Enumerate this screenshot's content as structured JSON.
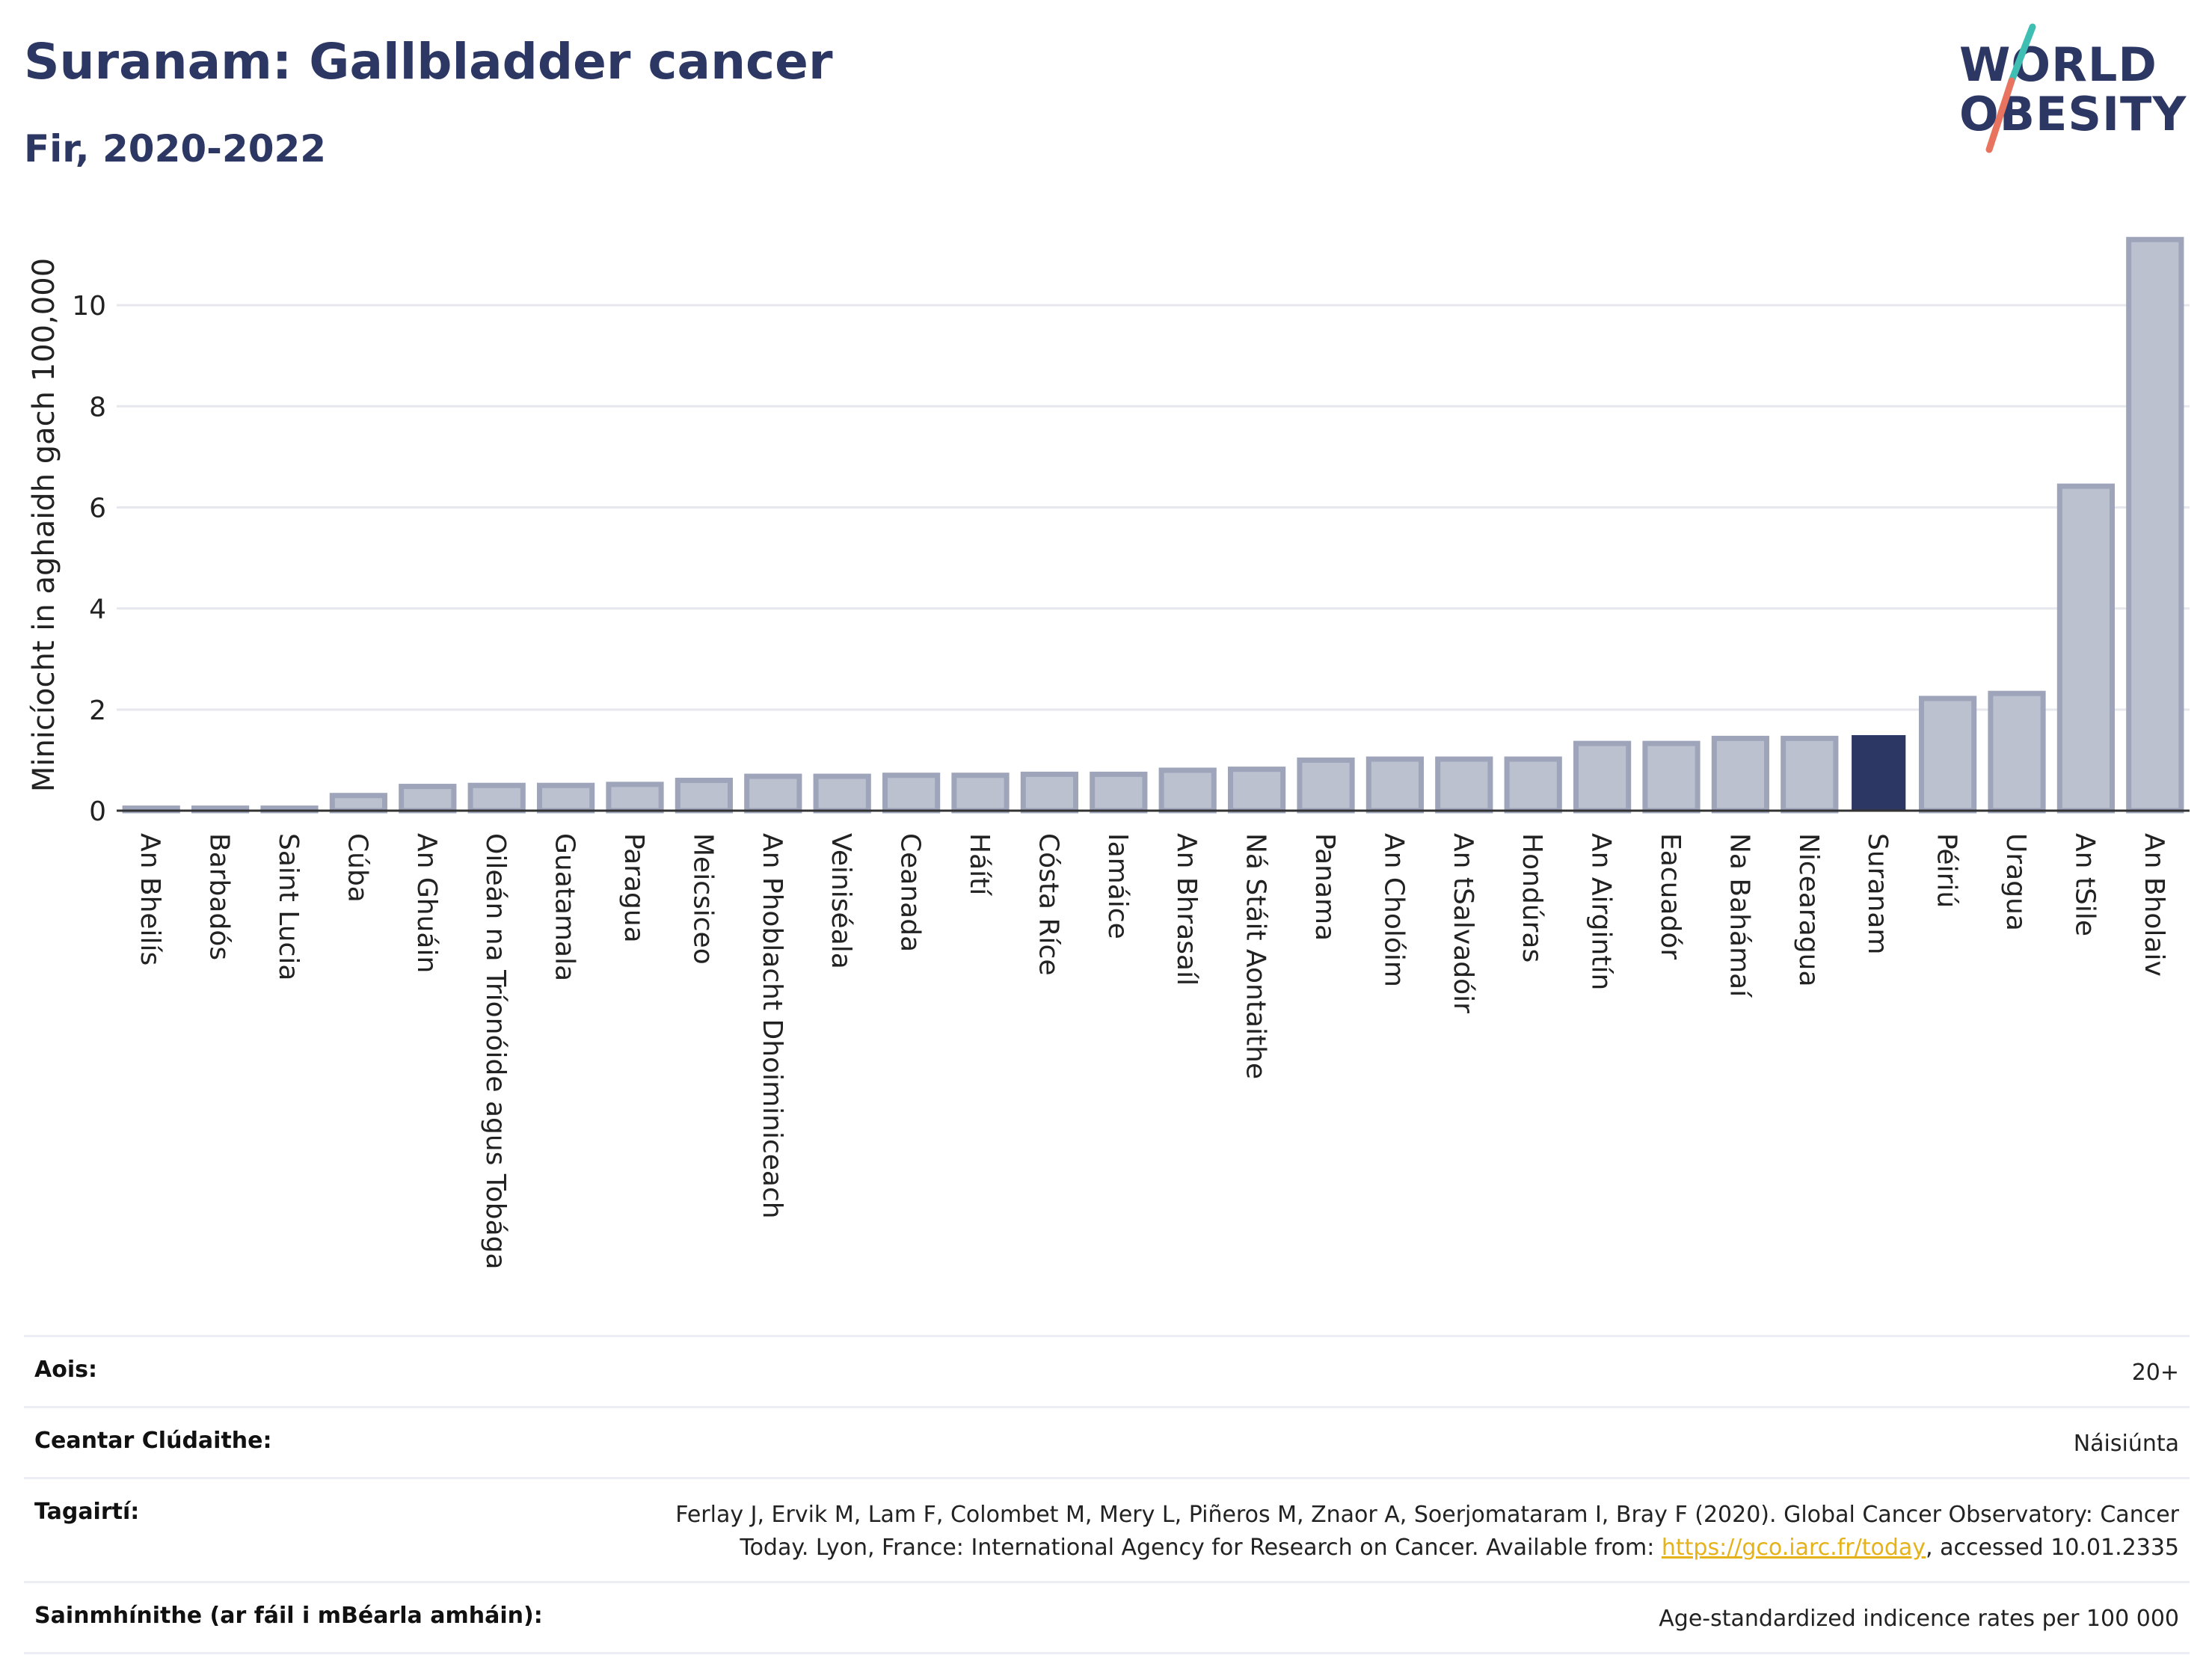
{
  "header": {
    "title": "Suranam: Gallbladder cancer",
    "subtitle": "Fir, 2020-2022"
  },
  "logo": {
    "line1": "WORLD",
    "line2": "OBESITY"
  },
  "colors": {
    "title": "#2c3764",
    "highlight_bar": "#2c3764",
    "other_bar_fill": "#bcc1d0",
    "other_bar_stroke": "#9ea4ba",
    "grid": "#e6e8ee",
    "axis": "#333333",
    "logo_teal": "#3fbfb4",
    "logo_coral": "#e8735f"
  },
  "chart_data": {
    "type": "bar",
    "title": "Suranam: Gallbladder cancer",
    "subtitle": "Fir, 2020-2022",
    "ylabel": "Minicíocht in aghaidh gach 100,000",
    "xlabel": "",
    "ylim": [
      0,
      11.6
    ],
    "yticks": [
      0,
      2,
      4,
      6,
      8,
      10
    ],
    "grid": true,
    "highlight": "Suranam",
    "categories": [
      "An Bheilís",
      "Barbadós",
      "Saint Lucia",
      "Cúba",
      "An Ghuáin",
      "Oileán na Tríonóide agus Tobága",
      "Guatamala",
      "Paragua",
      "Meicsiceo",
      "An Phoblacht Dhoiminiceach",
      "Veiniséala",
      "Ceanada",
      "Háítí",
      "Cósta Ríce",
      "Iamáice",
      "An Bhrasaíl",
      "Ná Stáit Aontaithe",
      "Panama",
      "An Cholóim",
      "An tSalvadóir",
      "Hondúras",
      "An Airgintín",
      "Eacuadór",
      "Na Bahámaí",
      "Nicearagua",
      "Suranam",
      "Péiriú",
      "Uragua",
      "An tSile",
      "An Bholaiv"
    ],
    "values": [
      0.05,
      0.05,
      0.05,
      0.3,
      0.48,
      0.5,
      0.5,
      0.52,
      0.6,
      0.68,
      0.68,
      0.7,
      0.7,
      0.72,
      0.72,
      0.8,
      0.82,
      1.0,
      1.02,
      1.02,
      1.02,
      1.33,
      1.33,
      1.43,
      1.43,
      1.48,
      2.22,
      2.32,
      6.42,
      11.3
    ]
  },
  "info": {
    "rows": [
      {
        "label": "Aois:",
        "value": "20+"
      },
      {
        "label": "Ceantar Clúdaithe:",
        "value": "Náisiúnta"
      },
      {
        "label": "Tagairtí:",
        "value_line1": "Ferlay J, Ervik M, Lam F, Colombet M, Mery L, Piñeros M, Znaor A, Soerjomataram I, Bray F (2020). Global Cancer Observatory: Cancer",
        "value_line2_pre": "Today. Lyon, France: International Agency for Research on Cancer. Available from: ",
        "link": "https://gco.iarc.fr/today",
        "value_line2_post": ", accessed 10.01.2335"
      },
      {
        "label": "Sainmhínithe (ar fáil i mBéarla amháin):",
        "value": "Age-standardized indicence rates per 100 000"
      }
    ]
  }
}
